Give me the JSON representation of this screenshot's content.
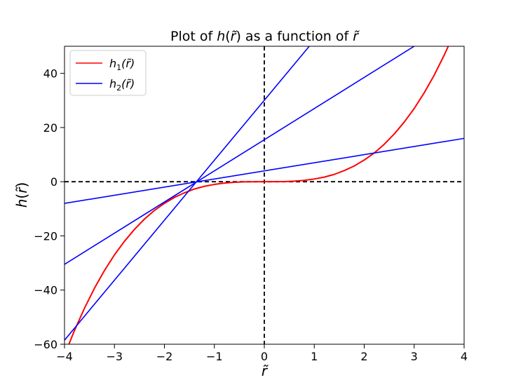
{
  "chart_data": {
    "type": "line",
    "title": {
      "prefix": "Plot of ",
      "func": "h",
      "arg_open": "(",
      "arg": "r̃",
      "arg_close": ")",
      "middle": " as a function of ",
      "var": "r̃"
    },
    "xlabel": "r̃",
    "ylabel": {
      "func": "h",
      "open": "(",
      "arg": "r̃",
      "close": ")"
    },
    "xlim": [
      -4,
      4
    ],
    "ylim": [
      -60,
      50
    ],
    "x_ticks": [
      -4,
      -3,
      -2,
      -1,
      0,
      1,
      2,
      3,
      4
    ],
    "x_tick_labels": [
      "−4",
      "−3",
      "−2",
      "−1",
      "0",
      "1",
      "2",
      "3",
      "4"
    ],
    "y_ticks": [
      -60,
      -40,
      -20,
      0,
      20,
      40
    ],
    "y_tick_labels": [
      "−60",
      "−40",
      "−20",
      "0",
      "20",
      "40"
    ],
    "grid": false,
    "legend": {
      "placement": "top-left",
      "entries": [
        {
          "func": "h",
          "sub": "1",
          "arg": "(r̃)",
          "color": "#ff0000"
        },
        {
          "func": "h",
          "sub": "2",
          "arg": "(r̃)",
          "color": "#0000ff"
        }
      ]
    },
    "reference_lines": [
      {
        "orientation": "horizontal",
        "value": 0,
        "style": "dashed",
        "color": "#000000"
      },
      {
        "orientation": "vertical",
        "value": 0,
        "style": "dashed",
        "color": "#000000"
      }
    ],
    "series": [
      {
        "name": "h₁(r̃)",
        "color": "#ff0000",
        "x": [
          -4.0,
          -3.8,
          -3.6,
          -3.4,
          -3.2,
          -3.0,
          -2.8,
          -2.6,
          -2.4,
          -2.2,
          -2.0,
          -1.8,
          -1.6,
          -1.4,
          -1.2,
          -1.0,
          -0.8,
          -0.6,
          -0.4,
          -0.2,
          0.0,
          0.2,
          0.4,
          0.6,
          0.8,
          1.0,
          1.2,
          1.4,
          1.6,
          1.8,
          2.0,
          2.2,
          2.4,
          2.6,
          2.8,
          3.0,
          3.2,
          3.4,
          3.6,
          3.7
        ],
        "y": [
          -64.0,
          -54.9,
          -46.7,
          -39.3,
          -32.8,
          -27.0,
          -22.0,
          -17.6,
          -13.8,
          -10.6,
          -8.0,
          -5.8,
          -4.1,
          -2.7,
          -1.7,
          -1.0,
          -0.5,
          -0.2,
          -0.06,
          -0.01,
          0.0,
          0.01,
          0.06,
          0.2,
          0.5,
          1.0,
          1.7,
          2.7,
          4.1,
          5.8,
          8.0,
          10.6,
          13.8,
          17.6,
          22.0,
          27.0,
          32.8,
          39.3,
          46.7,
          50.7
        ]
      },
      {
        "name": "h₂(r̃)",
        "color": "#0000ff",
        "lines": [
          {
            "x": [
              -4.0,
              4.0
            ],
            "y": [
              -8.0,
              16.0
            ]
          },
          {
            "x": [
              -4.0,
              3.0
            ],
            "y": [
              -30.5,
              50.0
            ]
          },
          {
            "x": [
              -4.0,
              0.9
            ],
            "y": [
              -58.5,
              50.0
            ]
          }
        ]
      }
    ]
  }
}
